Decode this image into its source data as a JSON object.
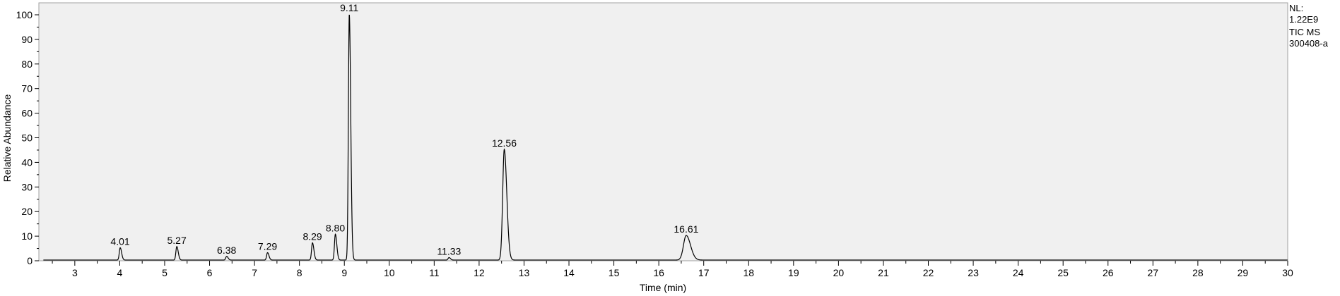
{
  "chart_data": {
    "type": "line",
    "xlabel": "Time (min)",
    "ylabel": "Relative Abundance",
    "xlim": [
      2.2,
      30
    ],
    "ylim": [
      0,
      100
    ],
    "x_ticks": [
      3,
      4,
      5,
      6,
      7,
      8,
      9,
      10,
      11,
      12,
      13,
      14,
      15,
      16,
      17,
      18,
      19,
      20,
      21,
      22,
      23,
      24,
      25,
      26,
      27,
      28,
      29,
      30
    ],
    "y_ticks": [
      0,
      10,
      20,
      30,
      40,
      50,
      60,
      70,
      80,
      90,
      100
    ],
    "info": [
      "NL:",
      "1.22E9",
      "TIC  MS",
      "300408-a"
    ],
    "peaks": [
      {
        "rt": 4.01,
        "label": "4.01",
        "height": 5
      },
      {
        "rt": 5.27,
        "label": "5.27",
        "height": 5.5
      },
      {
        "rt": 6.38,
        "label": "6.38",
        "height": 1.5
      },
      {
        "rt": 7.29,
        "label": "7.29",
        "height": 3
      },
      {
        "rt": 8.29,
        "label": "8.29",
        "height": 7
      },
      {
        "rt": 8.8,
        "label": "8.80",
        "height": 10.5
      },
      {
        "rt": 9.11,
        "label": "9.11",
        "height": 100
      },
      {
        "rt": 11.33,
        "label": "11.33",
        "height": 1
      },
      {
        "rt": 12.56,
        "label": "12.56",
        "height": 45
      },
      {
        "rt": 16.61,
        "label": "16.61",
        "height": 10
      }
    ]
  }
}
